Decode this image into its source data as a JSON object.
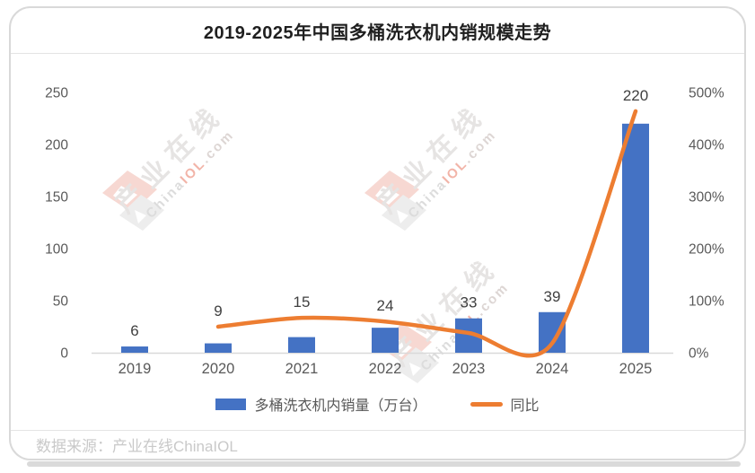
{
  "title": "2019-2025年中国多桶洗衣机内销规模走势",
  "source": "数据来源：产业在线ChinaIOL",
  "watermark": {
    "cn": "产业在线",
    "en": [
      {
        "t": "China",
        "c": "#dcdcdc"
      },
      {
        "t": "IOL",
        "c": "#f2b4a8"
      },
      {
        "t": ".com",
        "c": "#ddd6d4"
      }
    ]
  },
  "colors": {
    "bar": "#4472c4",
    "line": "#ed7d31",
    "axis_text": "#595959",
    "data_label": "#404040",
    "baseline": "#d9d9d9",
    "border": "#d9d9d9",
    "title_text": "#1f1f1f",
    "source_text": "#c9c9c9",
    "logo_red": "#f7d8d2",
    "logo_gray": "#ededed"
  },
  "chart_data": {
    "type": "bar+line combo",
    "title": "2019-2025年中国多桶洗衣机内销规模走势",
    "categories": [
      "2019",
      "2020",
      "2021",
      "2022",
      "2023",
      "2024",
      "2025"
    ],
    "series": [
      {
        "name": "多桶洗衣机内销量（万台）",
        "type": "bar",
        "axis": "left",
        "values": [
          6,
          9,
          15,
          24,
          33,
          39,
          220
        ],
        "data_labels": [
          "6",
          "9",
          "15",
          "24",
          "33",
          "39",
          "220"
        ],
        "color": "#4472c4"
      },
      {
        "name": "同比",
        "type": "line",
        "axis": "right",
        "unit": "%",
        "values": [
          null,
          50,
          67,
          60,
          38,
          18,
          464
        ],
        "color": "#ed7d31"
      }
    ],
    "left_axis": {
      "min": 0,
      "max": 250,
      "ticks": [
        "0",
        "50",
        "100",
        "150",
        "200",
        "250"
      ]
    },
    "right_axis": {
      "min": 0,
      "max": 500,
      "ticks": [
        "0%",
        "100%",
        "200%",
        "300%",
        "400%",
        "500%"
      ]
    },
    "grid": false,
    "legend_position": "bottom"
  }
}
